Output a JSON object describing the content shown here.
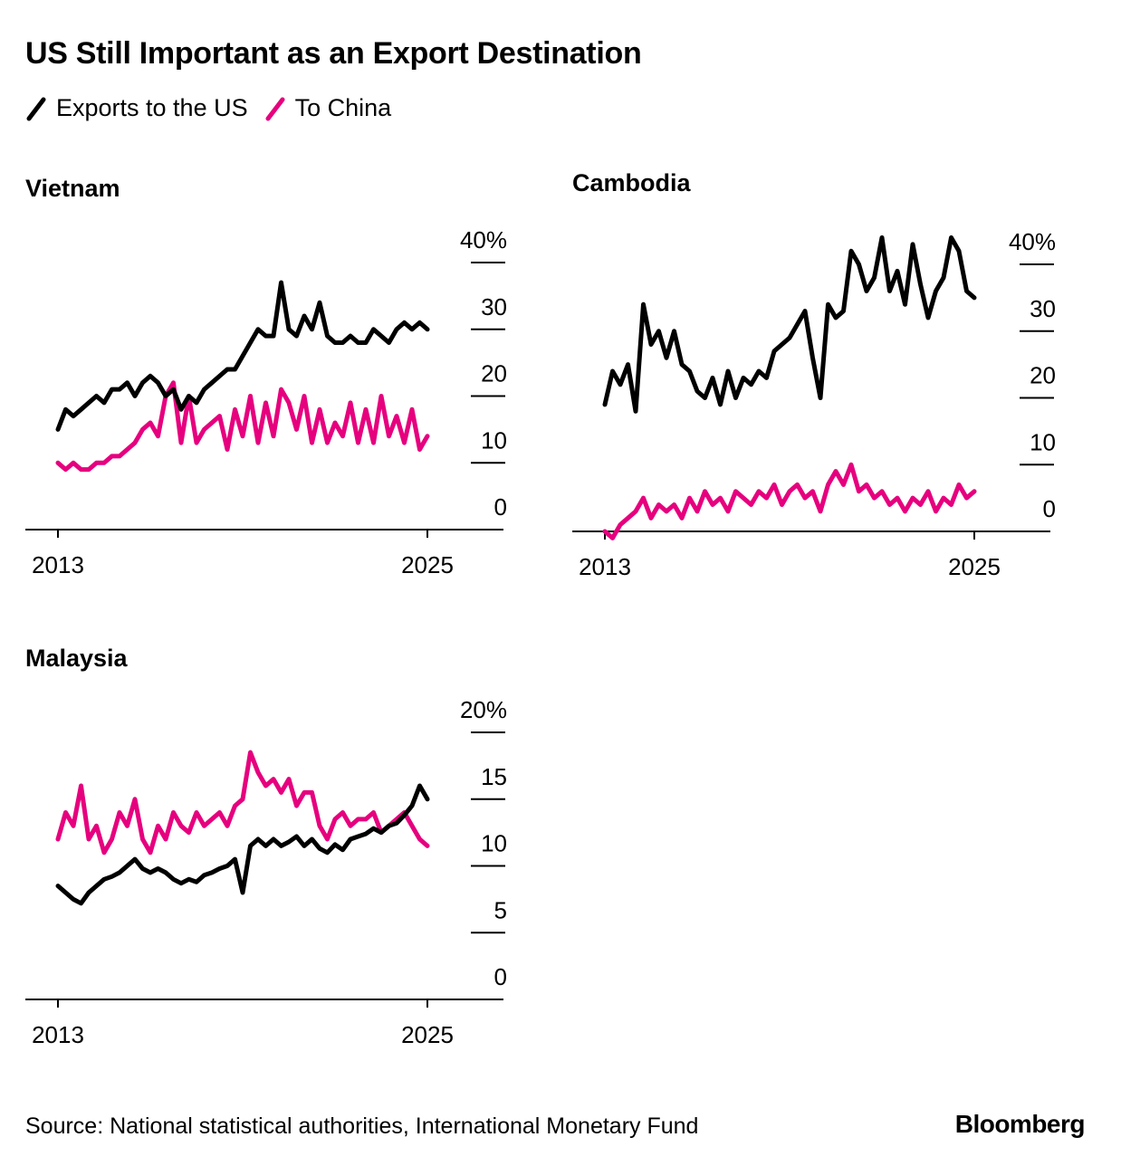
{
  "title": "US Still Important as an Export Destination",
  "legend": [
    {
      "label": "Exports to the US",
      "color": "#000000"
    },
    {
      "label": "To China",
      "color": "#e6007e"
    }
  ],
  "source": "Source: National statistical authorities, International Monetary Fund",
  "brand": "Bloomberg",
  "chart_data": [
    {
      "type": "line",
      "title": "Vietnam",
      "xlabel": "",
      "ylabel": "",
      "xlim": [
        2013,
        2025
      ],
      "ylim": [
        0,
        40
      ],
      "yticks": [
        0,
        10,
        20,
        30,
        40
      ],
      "ytick_labels": [
        "0",
        "10",
        "20",
        "30",
        "40%"
      ],
      "xtick_labels": [
        "2013",
        "2025"
      ],
      "series": [
        {
          "name": "Exports to the US",
          "color": "#000000",
          "x": [
            2013.0,
            2013.25,
            2013.5,
            2013.75,
            2014.0,
            2014.25,
            2014.5,
            2014.75,
            2015.0,
            2015.25,
            2015.5,
            2015.75,
            2016.0,
            2016.25,
            2016.5,
            2016.75,
            2017.0,
            2017.25,
            2017.5,
            2017.75,
            2018.0,
            2018.25,
            2018.5,
            2018.75,
            2019.0,
            2019.25,
            2019.5,
            2019.75,
            2020.0,
            2020.25,
            2020.5,
            2020.75,
            2021.0,
            2021.25,
            2021.5,
            2021.75,
            2022.0,
            2022.25,
            2022.5,
            2022.75,
            2023.0,
            2023.25,
            2023.5,
            2023.75,
            2024.0,
            2024.25,
            2024.5,
            2024.75,
            2025.0
          ],
          "values": [
            15,
            18,
            17,
            18,
            19,
            20,
            19,
            21,
            21,
            22,
            20,
            22,
            23,
            22,
            20,
            21,
            18,
            20,
            19,
            21,
            22,
            23,
            24,
            24,
            26,
            28,
            30,
            29,
            29,
            37,
            30,
            29,
            32,
            30,
            34,
            29,
            28,
            28,
            29,
            28,
            28,
            30,
            29,
            28,
            30,
            31,
            30,
            31,
            30
          ]
        },
        {
          "name": "To China",
          "color": "#e6007e",
          "x": [
            2013.0,
            2013.25,
            2013.5,
            2013.75,
            2014.0,
            2014.25,
            2014.5,
            2014.75,
            2015.0,
            2015.25,
            2015.5,
            2015.75,
            2016.0,
            2016.25,
            2016.5,
            2016.75,
            2017.0,
            2017.25,
            2017.5,
            2017.75,
            2018.0,
            2018.25,
            2018.5,
            2018.75,
            2019.0,
            2019.25,
            2019.5,
            2019.75,
            2020.0,
            2020.25,
            2020.5,
            2020.75,
            2021.0,
            2021.25,
            2021.5,
            2021.75,
            2022.0,
            2022.25,
            2022.5,
            2022.75,
            2023.0,
            2023.25,
            2023.5,
            2023.75,
            2024.0,
            2024.25,
            2024.5,
            2024.75,
            2025.0
          ],
          "values": [
            10,
            9,
            10,
            9,
            9,
            10,
            10,
            11,
            11,
            12,
            13,
            15,
            16,
            14,
            20,
            22,
            13,
            20,
            13,
            15,
            16,
            17,
            12,
            18,
            14,
            20,
            13,
            19,
            14,
            21,
            19,
            15,
            20,
            13,
            18,
            13,
            16,
            14,
            19,
            13,
            18,
            13,
            20,
            14,
            17,
            13,
            18,
            12,
            14
          ]
        }
      ]
    },
    {
      "type": "line",
      "title": "Cambodia",
      "xlabel": "",
      "ylabel": "",
      "xlim": [
        2013,
        2025
      ],
      "ylim": [
        0,
        40
      ],
      "yticks": [
        0,
        10,
        20,
        30,
        40
      ],
      "ytick_labels": [
        "0",
        "10",
        "20",
        "30",
        "40%"
      ],
      "xtick_labels": [
        "2013",
        "2025"
      ],
      "series": [
        {
          "name": "Exports to the US",
          "color": "#000000",
          "x": [
            2013.0,
            2013.25,
            2013.5,
            2013.75,
            2014.0,
            2014.25,
            2014.5,
            2014.75,
            2015.0,
            2015.25,
            2015.5,
            2015.75,
            2016.0,
            2016.25,
            2016.5,
            2016.75,
            2017.0,
            2017.25,
            2017.5,
            2017.75,
            2018.0,
            2018.25,
            2018.5,
            2018.75,
            2019.0,
            2019.25,
            2019.5,
            2019.75,
            2020.0,
            2020.25,
            2020.5,
            2020.75,
            2021.0,
            2021.25,
            2021.5,
            2021.75,
            2022.0,
            2022.25,
            2022.5,
            2022.75,
            2023.0,
            2023.25,
            2023.5,
            2023.75,
            2024.0,
            2024.25,
            2024.5,
            2024.75,
            2025.0
          ],
          "values": [
            19,
            24,
            22,
            25,
            18,
            34,
            28,
            30,
            26,
            30,
            25,
            24,
            21,
            20,
            23,
            19,
            24,
            20,
            23,
            22,
            24,
            23,
            27,
            28,
            29,
            31,
            33,
            26,
            20,
            34,
            32,
            33,
            42,
            40,
            36,
            38,
            44,
            36,
            39,
            34,
            43,
            37,
            32,
            36,
            38,
            44,
            42,
            36,
            35
          ]
        },
        {
          "name": "To China",
          "color": "#e6007e",
          "x": [
            2013.0,
            2013.25,
            2013.5,
            2013.75,
            2014.0,
            2014.25,
            2014.5,
            2014.75,
            2015.0,
            2015.25,
            2015.5,
            2015.75,
            2016.0,
            2016.25,
            2016.5,
            2016.75,
            2017.0,
            2017.25,
            2017.5,
            2017.75,
            2018.0,
            2018.25,
            2018.5,
            2018.75,
            2019.0,
            2019.25,
            2019.5,
            2019.75,
            2020.0,
            2020.25,
            2020.5,
            2020.75,
            2021.0,
            2021.25,
            2021.5,
            2021.75,
            2022.0,
            2022.25,
            2022.5,
            2022.75,
            2023.0,
            2023.25,
            2023.5,
            2023.75,
            2024.0,
            2024.25,
            2024.5,
            2024.75,
            2025.0
          ],
          "values": [
            0,
            -1,
            1,
            2,
            3,
            5,
            2,
            4,
            3,
            4,
            2,
            5,
            3,
            6,
            4,
            5,
            3,
            6,
            5,
            4,
            6,
            5,
            7,
            4,
            6,
            7,
            5,
            6,
            3,
            7,
            9,
            7,
            10,
            6,
            7,
            5,
            6,
            4,
            5,
            3,
            5,
            4,
            6,
            3,
            5,
            4,
            7,
            5,
            6
          ]
        }
      ]
    },
    {
      "type": "line",
      "title": "Malaysia",
      "xlabel": "",
      "ylabel": "",
      "xlim": [
        2013,
        2025
      ],
      "ylim": [
        0,
        20
      ],
      "yticks": [
        0,
        5,
        10,
        15,
        20
      ],
      "ytick_labels": [
        "0",
        "5",
        "10",
        "15",
        "20%"
      ],
      "xtick_labels": [
        "2013",
        "2025"
      ],
      "series": [
        {
          "name": "Exports to the US",
          "color": "#000000",
          "x": [
            2013.0,
            2013.25,
            2013.5,
            2013.75,
            2014.0,
            2014.25,
            2014.5,
            2014.75,
            2015.0,
            2015.25,
            2015.5,
            2015.75,
            2016.0,
            2016.25,
            2016.5,
            2016.75,
            2017.0,
            2017.25,
            2017.5,
            2017.75,
            2018.0,
            2018.25,
            2018.5,
            2018.75,
            2019.0,
            2019.25,
            2019.5,
            2019.75,
            2020.0,
            2020.25,
            2020.5,
            2020.75,
            2021.0,
            2021.25,
            2021.5,
            2021.75,
            2022.0,
            2022.25,
            2022.5,
            2022.75,
            2023.0,
            2023.25,
            2023.5,
            2023.75,
            2024.0,
            2024.25,
            2024.5,
            2024.75,
            2025.0
          ],
          "values": [
            8.5,
            8,
            7.5,
            7.2,
            8,
            8.5,
            9,
            9.2,
            9.5,
            10,
            10.5,
            9.8,
            9.5,
            9.8,
            9.5,
            9,
            8.7,
            9,
            8.8,
            9.3,
            9.5,
            9.8,
            10,
            10.5,
            8,
            11.5,
            12,
            11.5,
            12,
            11.5,
            11.8,
            12.2,
            11.5,
            12,
            11.3,
            11,
            11.6,
            11.2,
            12,
            12.2,
            12.4,
            12.8,
            12.5,
            13,
            13.2,
            13.8,
            14.5,
            16,
            15
          ]
        },
        {
          "name": "To China",
          "color": "#e6007e",
          "x": [
            2013.0,
            2013.25,
            2013.5,
            2013.75,
            2014.0,
            2014.25,
            2014.5,
            2014.75,
            2015.0,
            2015.25,
            2015.5,
            2015.75,
            2016.0,
            2016.25,
            2016.5,
            2016.75,
            2017.0,
            2017.25,
            2017.5,
            2017.75,
            2018.0,
            2018.25,
            2018.5,
            2018.75,
            2019.0,
            2019.25,
            2019.5,
            2019.75,
            2020.0,
            2020.25,
            2020.5,
            2020.75,
            2021.0,
            2021.25,
            2021.5,
            2021.75,
            2022.0,
            2022.25,
            2022.5,
            2022.75,
            2023.0,
            2023.25,
            2023.5,
            2023.75,
            2024.0,
            2024.25,
            2024.5,
            2024.75,
            2025.0
          ],
          "values": [
            12,
            14,
            13,
            16,
            12,
            13,
            11,
            12,
            14,
            13,
            15,
            12,
            11,
            13,
            12,
            14,
            13,
            12.5,
            14,
            13,
            13.5,
            14,
            13,
            14.5,
            15,
            18.5,
            17,
            16,
            16.5,
            15.5,
            16.5,
            14.5,
            15.5,
            15.5,
            13,
            12,
            13.5,
            14,
            13,
            13.5,
            13.5,
            14,
            12.5,
            13,
            13.5,
            14,
            13,
            12,
            11.5
          ]
        }
      ]
    }
  ]
}
